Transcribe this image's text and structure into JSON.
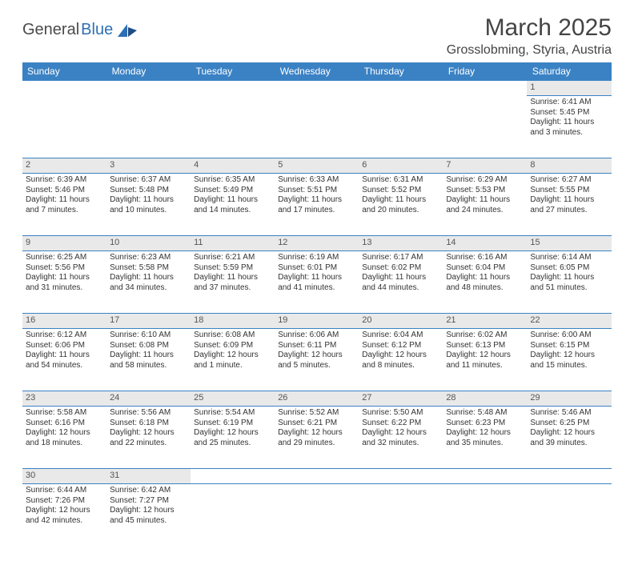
{
  "brand": {
    "name1": "General",
    "name2": "Blue"
  },
  "title": "March 2025",
  "location": "Grosslobming, Styria, Austria",
  "colors": {
    "header_bg": "#3b82c4",
    "header_text": "#ffffff",
    "daynum_bg": "#e9e9e9",
    "border": "#3b82c4",
    "brand_gray": "#4a4a4a",
    "brand_blue": "#2d6fb5"
  },
  "weekdays": [
    "Sunday",
    "Monday",
    "Tuesday",
    "Wednesday",
    "Thursday",
    "Friday",
    "Saturday"
  ],
  "weeks": [
    [
      null,
      null,
      null,
      null,
      null,
      null,
      {
        "n": "1",
        "sunrise": "Sunrise: 6:41 AM",
        "sunset": "Sunset: 5:45 PM",
        "daylight": "Daylight: 11 hours and 3 minutes."
      }
    ],
    [
      {
        "n": "2",
        "sunrise": "Sunrise: 6:39 AM",
        "sunset": "Sunset: 5:46 PM",
        "daylight": "Daylight: 11 hours and 7 minutes."
      },
      {
        "n": "3",
        "sunrise": "Sunrise: 6:37 AM",
        "sunset": "Sunset: 5:48 PM",
        "daylight": "Daylight: 11 hours and 10 minutes."
      },
      {
        "n": "4",
        "sunrise": "Sunrise: 6:35 AM",
        "sunset": "Sunset: 5:49 PM",
        "daylight": "Daylight: 11 hours and 14 minutes."
      },
      {
        "n": "5",
        "sunrise": "Sunrise: 6:33 AM",
        "sunset": "Sunset: 5:51 PM",
        "daylight": "Daylight: 11 hours and 17 minutes."
      },
      {
        "n": "6",
        "sunrise": "Sunrise: 6:31 AM",
        "sunset": "Sunset: 5:52 PM",
        "daylight": "Daylight: 11 hours and 20 minutes."
      },
      {
        "n": "7",
        "sunrise": "Sunrise: 6:29 AM",
        "sunset": "Sunset: 5:53 PM",
        "daylight": "Daylight: 11 hours and 24 minutes."
      },
      {
        "n": "8",
        "sunrise": "Sunrise: 6:27 AM",
        "sunset": "Sunset: 5:55 PM",
        "daylight": "Daylight: 11 hours and 27 minutes."
      }
    ],
    [
      {
        "n": "9",
        "sunrise": "Sunrise: 6:25 AM",
        "sunset": "Sunset: 5:56 PM",
        "daylight": "Daylight: 11 hours and 31 minutes."
      },
      {
        "n": "10",
        "sunrise": "Sunrise: 6:23 AM",
        "sunset": "Sunset: 5:58 PM",
        "daylight": "Daylight: 11 hours and 34 minutes."
      },
      {
        "n": "11",
        "sunrise": "Sunrise: 6:21 AM",
        "sunset": "Sunset: 5:59 PM",
        "daylight": "Daylight: 11 hours and 37 minutes."
      },
      {
        "n": "12",
        "sunrise": "Sunrise: 6:19 AM",
        "sunset": "Sunset: 6:01 PM",
        "daylight": "Daylight: 11 hours and 41 minutes."
      },
      {
        "n": "13",
        "sunrise": "Sunrise: 6:17 AM",
        "sunset": "Sunset: 6:02 PM",
        "daylight": "Daylight: 11 hours and 44 minutes."
      },
      {
        "n": "14",
        "sunrise": "Sunrise: 6:16 AM",
        "sunset": "Sunset: 6:04 PM",
        "daylight": "Daylight: 11 hours and 48 minutes."
      },
      {
        "n": "15",
        "sunrise": "Sunrise: 6:14 AM",
        "sunset": "Sunset: 6:05 PM",
        "daylight": "Daylight: 11 hours and 51 minutes."
      }
    ],
    [
      {
        "n": "16",
        "sunrise": "Sunrise: 6:12 AM",
        "sunset": "Sunset: 6:06 PM",
        "daylight": "Daylight: 11 hours and 54 minutes."
      },
      {
        "n": "17",
        "sunrise": "Sunrise: 6:10 AM",
        "sunset": "Sunset: 6:08 PM",
        "daylight": "Daylight: 11 hours and 58 minutes."
      },
      {
        "n": "18",
        "sunrise": "Sunrise: 6:08 AM",
        "sunset": "Sunset: 6:09 PM",
        "daylight": "Daylight: 12 hours and 1 minute."
      },
      {
        "n": "19",
        "sunrise": "Sunrise: 6:06 AM",
        "sunset": "Sunset: 6:11 PM",
        "daylight": "Daylight: 12 hours and 5 minutes."
      },
      {
        "n": "20",
        "sunrise": "Sunrise: 6:04 AM",
        "sunset": "Sunset: 6:12 PM",
        "daylight": "Daylight: 12 hours and 8 minutes."
      },
      {
        "n": "21",
        "sunrise": "Sunrise: 6:02 AM",
        "sunset": "Sunset: 6:13 PM",
        "daylight": "Daylight: 12 hours and 11 minutes."
      },
      {
        "n": "22",
        "sunrise": "Sunrise: 6:00 AM",
        "sunset": "Sunset: 6:15 PM",
        "daylight": "Daylight: 12 hours and 15 minutes."
      }
    ],
    [
      {
        "n": "23",
        "sunrise": "Sunrise: 5:58 AM",
        "sunset": "Sunset: 6:16 PM",
        "daylight": "Daylight: 12 hours and 18 minutes."
      },
      {
        "n": "24",
        "sunrise": "Sunrise: 5:56 AM",
        "sunset": "Sunset: 6:18 PM",
        "daylight": "Daylight: 12 hours and 22 minutes."
      },
      {
        "n": "25",
        "sunrise": "Sunrise: 5:54 AM",
        "sunset": "Sunset: 6:19 PM",
        "daylight": "Daylight: 12 hours and 25 minutes."
      },
      {
        "n": "26",
        "sunrise": "Sunrise: 5:52 AM",
        "sunset": "Sunset: 6:21 PM",
        "daylight": "Daylight: 12 hours and 29 minutes."
      },
      {
        "n": "27",
        "sunrise": "Sunrise: 5:50 AM",
        "sunset": "Sunset: 6:22 PM",
        "daylight": "Daylight: 12 hours and 32 minutes."
      },
      {
        "n": "28",
        "sunrise": "Sunrise: 5:48 AM",
        "sunset": "Sunset: 6:23 PM",
        "daylight": "Daylight: 12 hours and 35 minutes."
      },
      {
        "n": "29",
        "sunrise": "Sunrise: 5:46 AM",
        "sunset": "Sunset: 6:25 PM",
        "daylight": "Daylight: 12 hours and 39 minutes."
      }
    ],
    [
      {
        "n": "30",
        "sunrise": "Sunrise: 6:44 AM",
        "sunset": "Sunset: 7:26 PM",
        "daylight": "Daylight: 12 hours and 42 minutes."
      },
      {
        "n": "31",
        "sunrise": "Sunrise: 6:42 AM",
        "sunset": "Sunset: 7:27 PM",
        "daylight": "Daylight: 12 hours and 45 minutes."
      },
      null,
      null,
      null,
      null,
      null
    ]
  ]
}
